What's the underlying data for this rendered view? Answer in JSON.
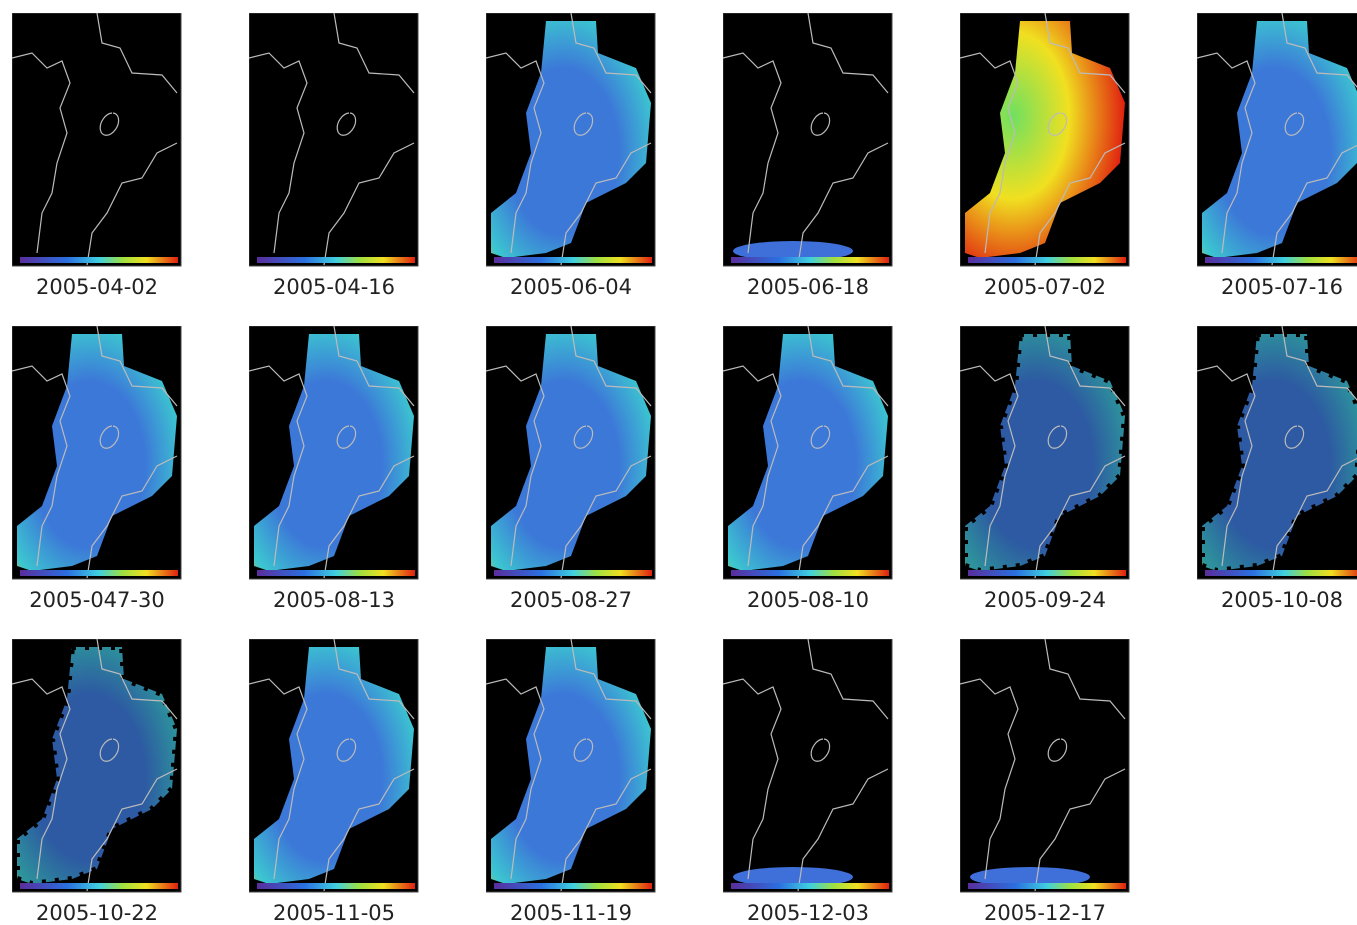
{
  "panels": [
    {
      "caption": "2005-04-02"
    },
    {
      "caption": "2005-04-16"
    },
    {
      "caption": "2005-06-04"
    },
    {
      "caption": "2005-06-18"
    },
    {
      "caption": "2005-07-02"
    },
    {
      "caption": "2005-07-16"
    },
    {
      "caption": "2005-047-30"
    },
    {
      "caption": "2005-08-13"
    },
    {
      "caption": "2005-08-27"
    },
    {
      "caption": "2005-08-10"
    },
    {
      "caption": "2005-09-24"
    },
    {
      "caption": "2005-10-08"
    },
    {
      "caption": "2005-10-22"
    },
    {
      "caption": "2005-11-05"
    },
    {
      "caption": "2005-11-19"
    },
    {
      "caption": "2005-12-03"
    },
    {
      "caption": "2005-12-17"
    }
  ]
}
